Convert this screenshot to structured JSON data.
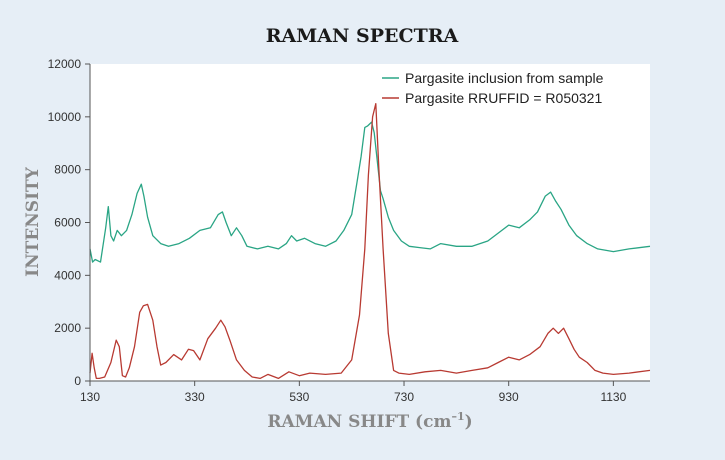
{
  "chart_data": {
    "type": "line",
    "title": "RAMAN SPECTRA",
    "xlabel": "RAMAN SHIFT (cm",
    "xlabel_sup": "–1",
    "xlabel_end": ")",
    "ylabel": "INTENSITY",
    "xlim": [
      130,
      1200
    ],
    "ylim": [
      0,
      12000
    ],
    "xticks": [
      130,
      330,
      530,
      730,
      930,
      1130
    ],
    "yticks": [
      0,
      2000,
      4000,
      6000,
      8000,
      10000,
      12000
    ],
    "legend_position": "top-right",
    "series": [
      {
        "name": "Pargasite inclusion from sample",
        "color": "#2aa585",
        "x": [
          130,
          135,
          140,
          150,
          160,
          165,
          170,
          175,
          182,
          190,
          200,
          210,
          220,
          228,
          233,
          240,
          250,
          265,
          280,
          300,
          320,
          340,
          360,
          375,
          383,
          390,
          400,
          410,
          420,
          430,
          450,
          470,
          490,
          505,
          515,
          525,
          540,
          560,
          580,
          600,
          615,
          630,
          640,
          648,
          655,
          660,
          668,
          673,
          678,
          685,
          690,
          700,
          710,
          725,
          740,
          760,
          780,
          800,
          830,
          860,
          890,
          910,
          930,
          950,
          970,
          985,
          1000,
          1010,
          1020,
          1030,
          1045,
          1060,
          1080,
          1100,
          1130,
          1160,
          1200
        ],
        "values": [
          5000,
          4500,
          4600,
          4500,
          5800,
          6600,
          5500,
          5300,
          5700,
          5500,
          5700,
          6300,
          7100,
          7450,
          7000,
          6200,
          5500,
          5200,
          5100,
          5200,
          5400,
          5700,
          5800,
          6300,
          6400,
          6000,
          5500,
          5800,
          5500,
          5100,
          5000,
          5100,
          5000,
          5200,
          5500,
          5300,
          5400,
          5200,
          5100,
          5300,
          5700,
          6300,
          7500,
          8500,
          9600,
          9650,
          9800,
          9400,
          8500,
          7200,
          6900,
          6200,
          5700,
          5300,
          5100,
          5050,
          5000,
          5200,
          5100,
          5100,
          5300,
          5600,
          5900,
          5800,
          6100,
          6400,
          7000,
          7150,
          6800,
          6500,
          5900,
          5500,
          5200,
          5000,
          4900,
          5000,
          5100
        ]
      },
      {
        "name": "Pargasite RRUFFID = R050321",
        "color": "#b83a32",
        "x": [
          130,
          134,
          138,
          142,
          148,
          158,
          170,
          180,
          186,
          192,
          198,
          205,
          215,
          225,
          232,
          240,
          250,
          258,
          265,
          275,
          290,
          305,
          318,
          328,
          340,
          355,
          370,
          380,
          388,
          398,
          410,
          425,
          440,
          455,
          470,
          490,
          510,
          530,
          550,
          580,
          610,
          630,
          645,
          655,
          662,
          670,
          676,
          682,
          690,
          700,
          710,
          720,
          740,
          770,
          800,
          830,
          860,
          890,
          910,
          930,
          950,
          970,
          990,
          1005,
          1015,
          1025,
          1035,
          1045,
          1055,
          1065,
          1080,
          1095,
          1110,
          1130,
          1160,
          1200
        ],
        "values": [
          300,
          1050,
          500,
          100,
          100,
          150,
          700,
          1550,
          1300,
          200,
          150,
          500,
          1300,
          2600,
          2850,
          2900,
          2300,
          1300,
          600,
          700,
          1000,
          800,
          1200,
          1150,
          800,
          1600,
          2000,
          2300,
          2050,
          1500,
          800,
          400,
          150,
          100,
          250,
          100,
          350,
          200,
          300,
          250,
          300,
          800,
          2500,
          5000,
          7800,
          10000,
          10500,
          8000,
          5000,
          1800,
          400,
          300,
          250,
          350,
          400,
          300,
          400,
          500,
          700,
          900,
          800,
          1000,
          1300,
          1800,
          2000,
          1800,
          2000,
          1600,
          1200,
          900,
          700,
          400,
          300,
          250,
          300,
          400
        ]
      }
    ]
  }
}
